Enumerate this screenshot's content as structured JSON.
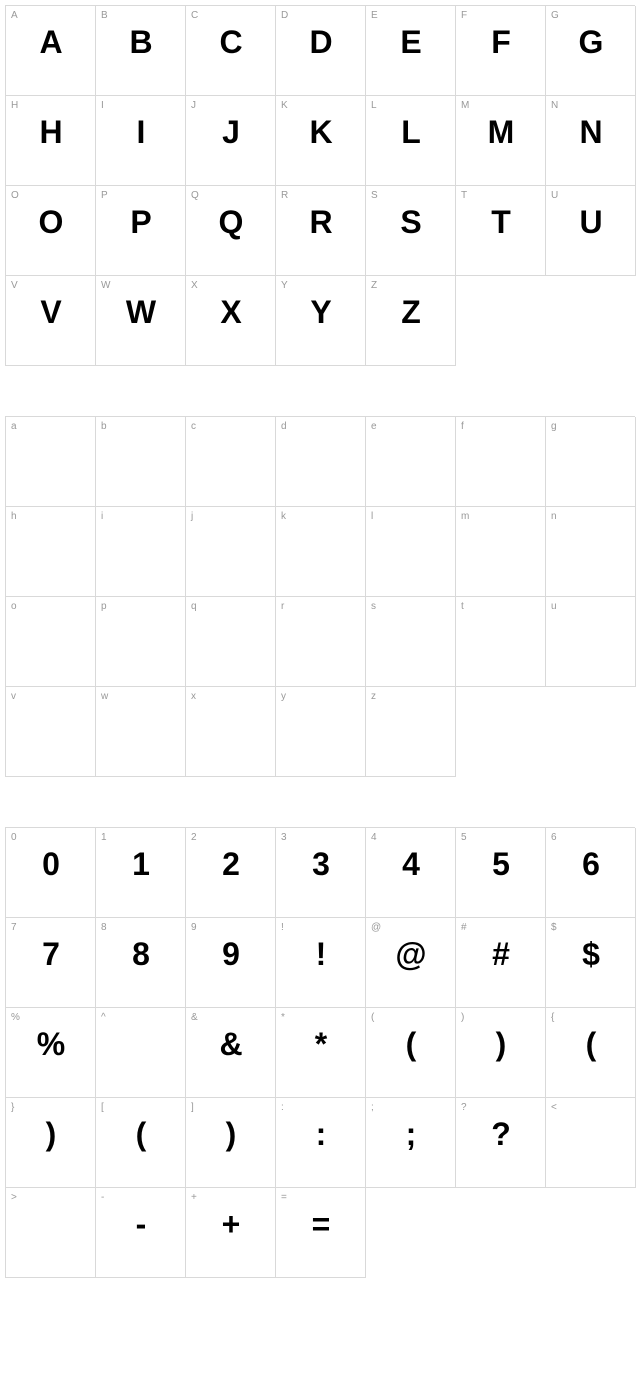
{
  "sections": [
    {
      "id": "uppercase",
      "columns": 7,
      "cells": [
        {
          "label": "A",
          "glyph": "A"
        },
        {
          "label": "B",
          "glyph": "B"
        },
        {
          "label": "C",
          "glyph": "C"
        },
        {
          "label": "D",
          "glyph": "D"
        },
        {
          "label": "E",
          "glyph": "E"
        },
        {
          "label": "F",
          "glyph": "F"
        },
        {
          "label": "G",
          "glyph": "G"
        },
        {
          "label": "H",
          "glyph": "H"
        },
        {
          "label": "I",
          "glyph": "I"
        },
        {
          "label": "J",
          "glyph": "J"
        },
        {
          "label": "K",
          "glyph": "K"
        },
        {
          "label": "L",
          "glyph": "L"
        },
        {
          "label": "M",
          "glyph": "M"
        },
        {
          "label": "N",
          "glyph": "N"
        },
        {
          "label": "O",
          "glyph": "O"
        },
        {
          "label": "P",
          "glyph": "P"
        },
        {
          "label": "Q",
          "glyph": "Q"
        },
        {
          "label": "R",
          "glyph": "R"
        },
        {
          "label": "S",
          "glyph": "S"
        },
        {
          "label": "T",
          "glyph": "T"
        },
        {
          "label": "U",
          "glyph": "U"
        },
        {
          "label": "V",
          "glyph": "V"
        },
        {
          "label": "W",
          "glyph": "W"
        },
        {
          "label": "X",
          "glyph": "X"
        },
        {
          "label": "Y",
          "glyph": "Y"
        },
        {
          "label": "Z",
          "glyph": "Z"
        }
      ]
    },
    {
      "id": "lowercase",
      "columns": 7,
      "cells": [
        {
          "label": "a",
          "glyph": ""
        },
        {
          "label": "b",
          "glyph": ""
        },
        {
          "label": "c",
          "glyph": ""
        },
        {
          "label": "d",
          "glyph": ""
        },
        {
          "label": "e",
          "glyph": ""
        },
        {
          "label": "f",
          "glyph": ""
        },
        {
          "label": "g",
          "glyph": ""
        },
        {
          "label": "h",
          "glyph": ""
        },
        {
          "label": "i",
          "glyph": ""
        },
        {
          "label": "j",
          "glyph": ""
        },
        {
          "label": "k",
          "glyph": ""
        },
        {
          "label": "l",
          "glyph": ""
        },
        {
          "label": "m",
          "glyph": ""
        },
        {
          "label": "n",
          "glyph": ""
        },
        {
          "label": "o",
          "glyph": ""
        },
        {
          "label": "p",
          "glyph": ""
        },
        {
          "label": "q",
          "glyph": ""
        },
        {
          "label": "r",
          "glyph": ""
        },
        {
          "label": "s",
          "glyph": ""
        },
        {
          "label": "t",
          "glyph": ""
        },
        {
          "label": "u",
          "glyph": ""
        },
        {
          "label": "v",
          "glyph": ""
        },
        {
          "label": "w",
          "glyph": ""
        },
        {
          "label": "x",
          "glyph": ""
        },
        {
          "label": "y",
          "glyph": ""
        },
        {
          "label": "z",
          "glyph": ""
        }
      ]
    },
    {
      "id": "numbers-symbols",
      "columns": 7,
      "cells": [
        {
          "label": "0",
          "glyph": "0"
        },
        {
          "label": "1",
          "glyph": "1"
        },
        {
          "label": "2",
          "glyph": "2"
        },
        {
          "label": "3",
          "glyph": "3"
        },
        {
          "label": "4",
          "glyph": "4"
        },
        {
          "label": "5",
          "glyph": "5"
        },
        {
          "label": "6",
          "glyph": "6"
        },
        {
          "label": "7",
          "glyph": "7"
        },
        {
          "label": "8",
          "glyph": "8"
        },
        {
          "label": "9",
          "glyph": "9"
        },
        {
          "label": "!",
          "glyph": "!"
        },
        {
          "label": "@",
          "glyph": "@"
        },
        {
          "label": "#",
          "glyph": "#"
        },
        {
          "label": "$",
          "glyph": "$"
        },
        {
          "label": "%",
          "glyph": "%"
        },
        {
          "label": "^",
          "glyph": ""
        },
        {
          "label": "&",
          "glyph": "&"
        },
        {
          "label": "*",
          "glyph": "*"
        },
        {
          "label": "(",
          "glyph": "("
        },
        {
          "label": ")",
          "glyph": ")"
        },
        {
          "label": "{",
          "glyph": "("
        },
        {
          "label": "}",
          "glyph": ")"
        },
        {
          "label": "[",
          "glyph": "("
        },
        {
          "label": "]",
          "glyph": ")"
        },
        {
          "label": ":",
          "glyph": ":"
        },
        {
          "label": ";",
          "glyph": ";"
        },
        {
          "label": "?",
          "glyph": "?"
        },
        {
          "label": "<",
          "glyph": ""
        },
        {
          "label": ">",
          "glyph": ""
        },
        {
          "label": "-",
          "glyph": "-"
        },
        {
          "label": "+",
          "glyph": "+"
        },
        {
          "label": "=",
          "glyph": "="
        }
      ]
    }
  ],
  "styling": {
    "background_color": "#ffffff",
    "border_color": "#d9d9d9",
    "label_color": "#999999",
    "glyph_color": "#000000",
    "label_fontsize": 10,
    "glyph_fontsize": 32,
    "cell_size": 90,
    "columns": 7,
    "section_gap": 50
  }
}
